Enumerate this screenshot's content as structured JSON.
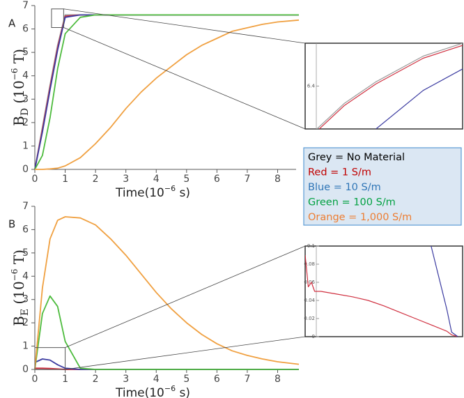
{
  "chart_data": [
    {
      "type": "line",
      "panel": "A",
      "ylabel": [
        "B",
        "D",
        " (10",
        "−6",
        " T)"
      ],
      "xlabel": [
        "Time(10",
        "−6",
        " s)"
      ],
      "xlim": [
        0,
        8.7
      ],
      "ylim": [
        0,
        7
      ],
      "xticks": [
        0,
        1,
        2,
        3,
        4,
        5,
        6,
        7,
        8
      ],
      "yticks": [
        0,
        1,
        2,
        3,
        4,
        5,
        6,
        7
      ],
      "x": [
        0,
        0.25,
        0.5,
        0.75,
        1,
        1.5,
        2,
        2.5,
        3,
        3.5,
        4,
        4.5,
        5,
        5.5,
        6,
        6.5,
        7,
        7.5,
        8,
        8.7
      ],
      "series": [
        {
          "name": "Grey = No Material",
          "color": "#9a9a9a",
          "label_color": "#000000",
          "values": [
            0,
            1.8,
            3.6,
            5.3,
            6.6,
            6.6,
            6.6,
            6.6,
            6.6,
            6.6,
            6.6,
            6.6,
            6.6,
            6.6,
            6.6,
            6.6,
            6.6,
            6.6,
            6.6,
            6.6
          ]
        },
        {
          "name": "Red = 1 S/m",
          "color": "#d03040",
          "label_color": "#c00000",
          "values": [
            0,
            1.7,
            3.5,
            5.2,
            6.55,
            6.6,
            6.6,
            6.6,
            6.6,
            6.6,
            6.6,
            6.6,
            6.6,
            6.6,
            6.6,
            6.6,
            6.6,
            6.6,
            6.6,
            6.6
          ]
        },
        {
          "name": "Blue = 10 S/m",
          "color": "#3a3aa0",
          "label_color": "#2e75b6",
          "values": [
            0,
            1.6,
            3.4,
            5.1,
            6.5,
            6.6,
            6.6,
            6.6,
            6.6,
            6.6,
            6.6,
            6.6,
            6.6,
            6.6,
            6.6,
            6.6,
            6.6,
            6.6,
            6.6,
            6.6
          ]
        },
        {
          "name": "Green = 100 S/m",
          "color": "#4cbb3c",
          "label_color": "#00a040",
          "values": [
            0,
            0.6,
            2.2,
            4.3,
            5.8,
            6.5,
            6.6,
            6.6,
            6.6,
            6.6,
            6.6,
            6.6,
            6.6,
            6.6,
            6.6,
            6.6,
            6.6,
            6.6,
            6.6,
            6.6
          ]
        },
        {
          "name": "Orange = 1,000 S/m",
          "color": "#f0a040",
          "label_color": "#ed7d31",
          "values": [
            0,
            0,
            0.02,
            0.05,
            0.15,
            0.5,
            1.1,
            1.8,
            2.6,
            3.3,
            3.9,
            4.4,
            4.9,
            5.3,
            5.6,
            5.9,
            6.05,
            6.2,
            6.3,
            6.38
          ]
        }
      ]
    },
    {
      "type": "line",
      "xlim": [
        0.55,
        0.95
      ],
      "ylim": [
        6.3,
        6.5
      ],
      "yticks": [
        6.4
      ],
      "x": [
        0.58,
        0.65,
        0.73,
        0.85,
        0.95
      ],
      "series": [
        {
          "color": "#9a9a9a",
          "values": [
            6.3,
            6.36,
            6.41,
            6.47,
            6.5
          ]
        },
        {
          "color": "#d03040",
          "values": [
            6.295,
            6.355,
            6.405,
            6.465,
            6.495
          ]
        },
        {
          "color": "#3a3aa0",
          "values": [
            null,
            null,
            6.3,
            6.39,
            6.44
          ]
        }
      ]
    },
    {
      "type": "line",
      "panel": "B",
      "ylabel": [
        "B",
        "E",
        " (10",
        "−6",
        " T)"
      ],
      "xlabel": [
        "Time(10",
        "−6",
        " s)"
      ],
      "xlim": [
        0,
        8.7
      ],
      "ylim": [
        0,
        7
      ],
      "xticks": [
        0,
        1,
        2,
        3,
        4,
        5,
        6,
        7,
        8
      ],
      "yticks": [
        0,
        1,
        2,
        3,
        4,
        5,
        6,
        7
      ],
      "x": [
        0,
        0.25,
        0.5,
        0.75,
        1,
        1.5,
        2,
        2.5,
        3,
        3.5,
        4,
        4.5,
        5,
        5.5,
        6,
        6.5,
        7,
        7.5,
        8,
        8.7
      ],
      "series": [
        {
          "color": "#9a9a9a",
          "values": [
            0,
            0,
            0,
            0,
            0,
            0,
            0,
            0,
            0,
            0,
            0,
            0,
            0,
            0,
            0,
            0,
            0,
            0,
            0,
            0
          ]
        },
        {
          "color": "#d03040",
          "values": [
            0.05,
            0.05,
            0.04,
            0.02,
            0,
            0,
            0,
            0,
            0,
            0,
            0,
            0,
            0,
            0,
            0,
            0,
            0,
            0,
            0,
            0
          ]
        },
        {
          "color": "#3a3aa0",
          "values": [
            0.3,
            0.45,
            0.4,
            0.2,
            0.05,
            0,
            0,
            0,
            0,
            0,
            0,
            0,
            0,
            0,
            0,
            0,
            0,
            0,
            0,
            0
          ]
        },
        {
          "color": "#4cbb3c",
          "values": [
            0,
            2.4,
            3.15,
            2.7,
            1.2,
            0.05,
            0,
            0,
            0,
            0,
            0,
            0,
            0,
            0,
            0,
            0,
            0,
            0,
            0,
            0
          ]
        },
        {
          "color": "#f0a040",
          "values": [
            0,
            3.5,
            5.6,
            6.4,
            6.55,
            6.5,
            6.2,
            5.6,
            4.9,
            4.1,
            3.3,
            2.6,
            2.0,
            1.5,
            1.1,
            0.8,
            0.6,
            0.45,
            0.33,
            0.22
          ]
        }
      ]
    },
    {
      "type": "line",
      "xlim": [
        0,
        1
      ],
      "ylim": [
        0,
        0.1
      ],
      "yticks": [
        0,
        0.02,
        0.04,
        0.06,
        0.08,
        0.1
      ],
      "x": [
        0,
        0.02,
        0.04,
        0.06,
        0.1,
        0.2,
        0.3,
        0.4,
        0.5,
        0.6,
        0.7,
        0.8,
        0.9,
        0.93,
        0.97
      ],
      "series": [
        {
          "color": "#d03040",
          "values": [
            0.09,
            0.055,
            0.06,
            0.05,
            0.05,
            0.047,
            0.044,
            0.04,
            0.034,
            0.027,
            0.02,
            0.013,
            0.006,
            0.002,
            0
          ]
        },
        {
          "color": "#3a3aa0",
          "values": [
            null,
            null,
            null,
            null,
            null,
            null,
            null,
            null,
            null,
            null,
            null,
            0.1,
            0.03,
            0.005,
            0
          ]
        }
      ]
    }
  ]
}
